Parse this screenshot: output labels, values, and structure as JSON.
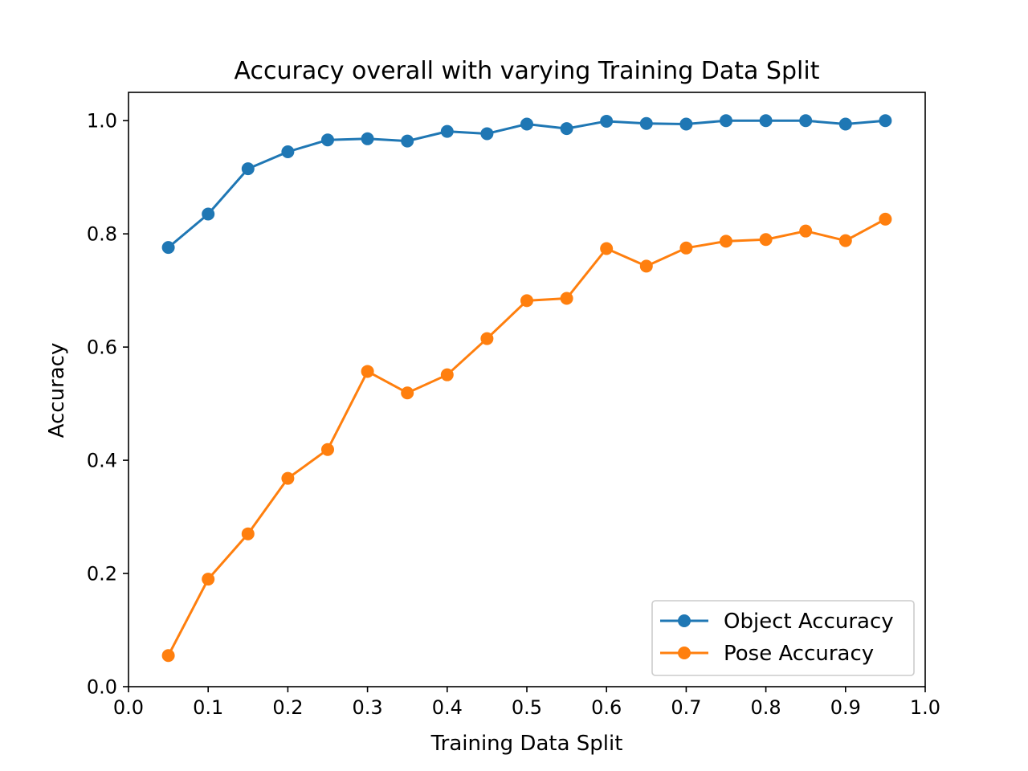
{
  "chart_data": {
    "type": "line",
    "title": "Accuracy overall with varying Training Data Split",
    "xlabel": "Training Data Split",
    "ylabel": "Accuracy",
    "xlim": [
      0.0,
      1.0
    ],
    "ylim": [
      0.0,
      1.05
    ],
    "xticks": [
      0.0,
      0.1,
      0.2,
      0.3,
      0.4,
      0.5,
      0.6,
      0.7,
      0.8,
      0.9,
      1.0
    ],
    "xtick_labels": [
      "0.0",
      "0.1",
      "0.2",
      "0.3",
      "0.4",
      "0.5",
      "0.6",
      "0.7",
      "0.8",
      "0.9",
      "1.0"
    ],
    "yticks": [
      0.0,
      0.2,
      0.4,
      0.6,
      0.8,
      1.0
    ],
    "ytick_labels": [
      "0.0",
      "0.2",
      "0.4",
      "0.6",
      "0.8",
      "1.0"
    ],
    "grid": false,
    "legend_position": "bottom-right",
    "x": [
      0.05,
      0.1,
      0.15,
      0.2,
      0.25,
      0.3,
      0.35,
      0.4,
      0.45,
      0.5,
      0.55,
      0.6,
      0.65,
      0.7,
      0.75,
      0.8,
      0.85,
      0.9,
      0.95
    ],
    "series": [
      {
        "name": "Object Accuracy",
        "color": "#1f77b4",
        "marker": "circle",
        "values": [
          0.776,
          0.835,
          0.915,
          0.945,
          0.966,
          0.968,
          0.964,
          0.981,
          0.977,
          0.994,
          0.986,
          0.999,
          0.995,
          0.994,
          1.0,
          1.0,
          1.0,
          0.994,
          1.0
        ]
      },
      {
        "name": "Pose Accuracy",
        "color": "#ff7f0e",
        "marker": "circle",
        "values": [
          0.055,
          0.19,
          0.27,
          0.368,
          0.419,
          0.557,
          0.519,
          0.551,
          0.615,
          0.682,
          0.686,
          0.774,
          0.743,
          0.775,
          0.787,
          0.79,
          0.805,
          0.788,
          0.826
        ]
      }
    ]
  }
}
